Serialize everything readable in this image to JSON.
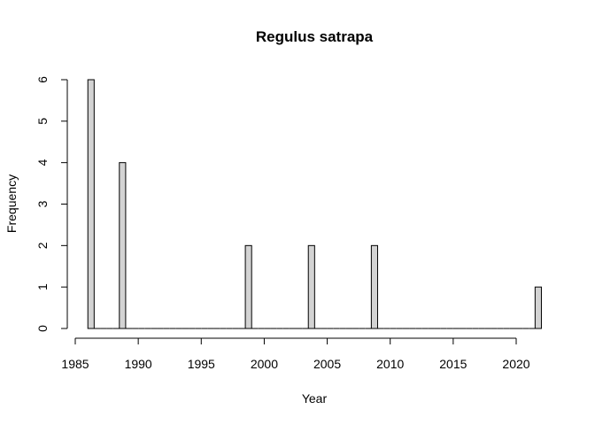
{
  "chart_data": {
    "type": "bar",
    "title": "Regulus satrapa",
    "xlabel": "Year",
    "ylabel": "Frequency",
    "bin_width": 0.5,
    "xlim": [
      1985,
      2022
    ],
    "ylim": [
      0,
      6
    ],
    "x_ticks": [
      1985,
      1990,
      1995,
      2000,
      2005,
      2010,
      2015,
      2020
    ],
    "y_ticks": [
      0,
      1,
      2,
      3,
      4,
      5,
      6
    ],
    "bars": [
      {
        "x": 1986,
        "value": 6
      },
      {
        "x": 1988.5,
        "value": 4
      },
      {
        "x": 1998.5,
        "value": 2
      },
      {
        "x": 2003.5,
        "value": 2
      },
      {
        "x": 2008.5,
        "value": 2
      },
      {
        "x": 2021.5,
        "value": 1
      }
    ],
    "colors": {
      "bar_fill": "#d3d3d3",
      "bar_stroke": "#000000"
    },
    "grid": false,
    "legend": "none"
  }
}
